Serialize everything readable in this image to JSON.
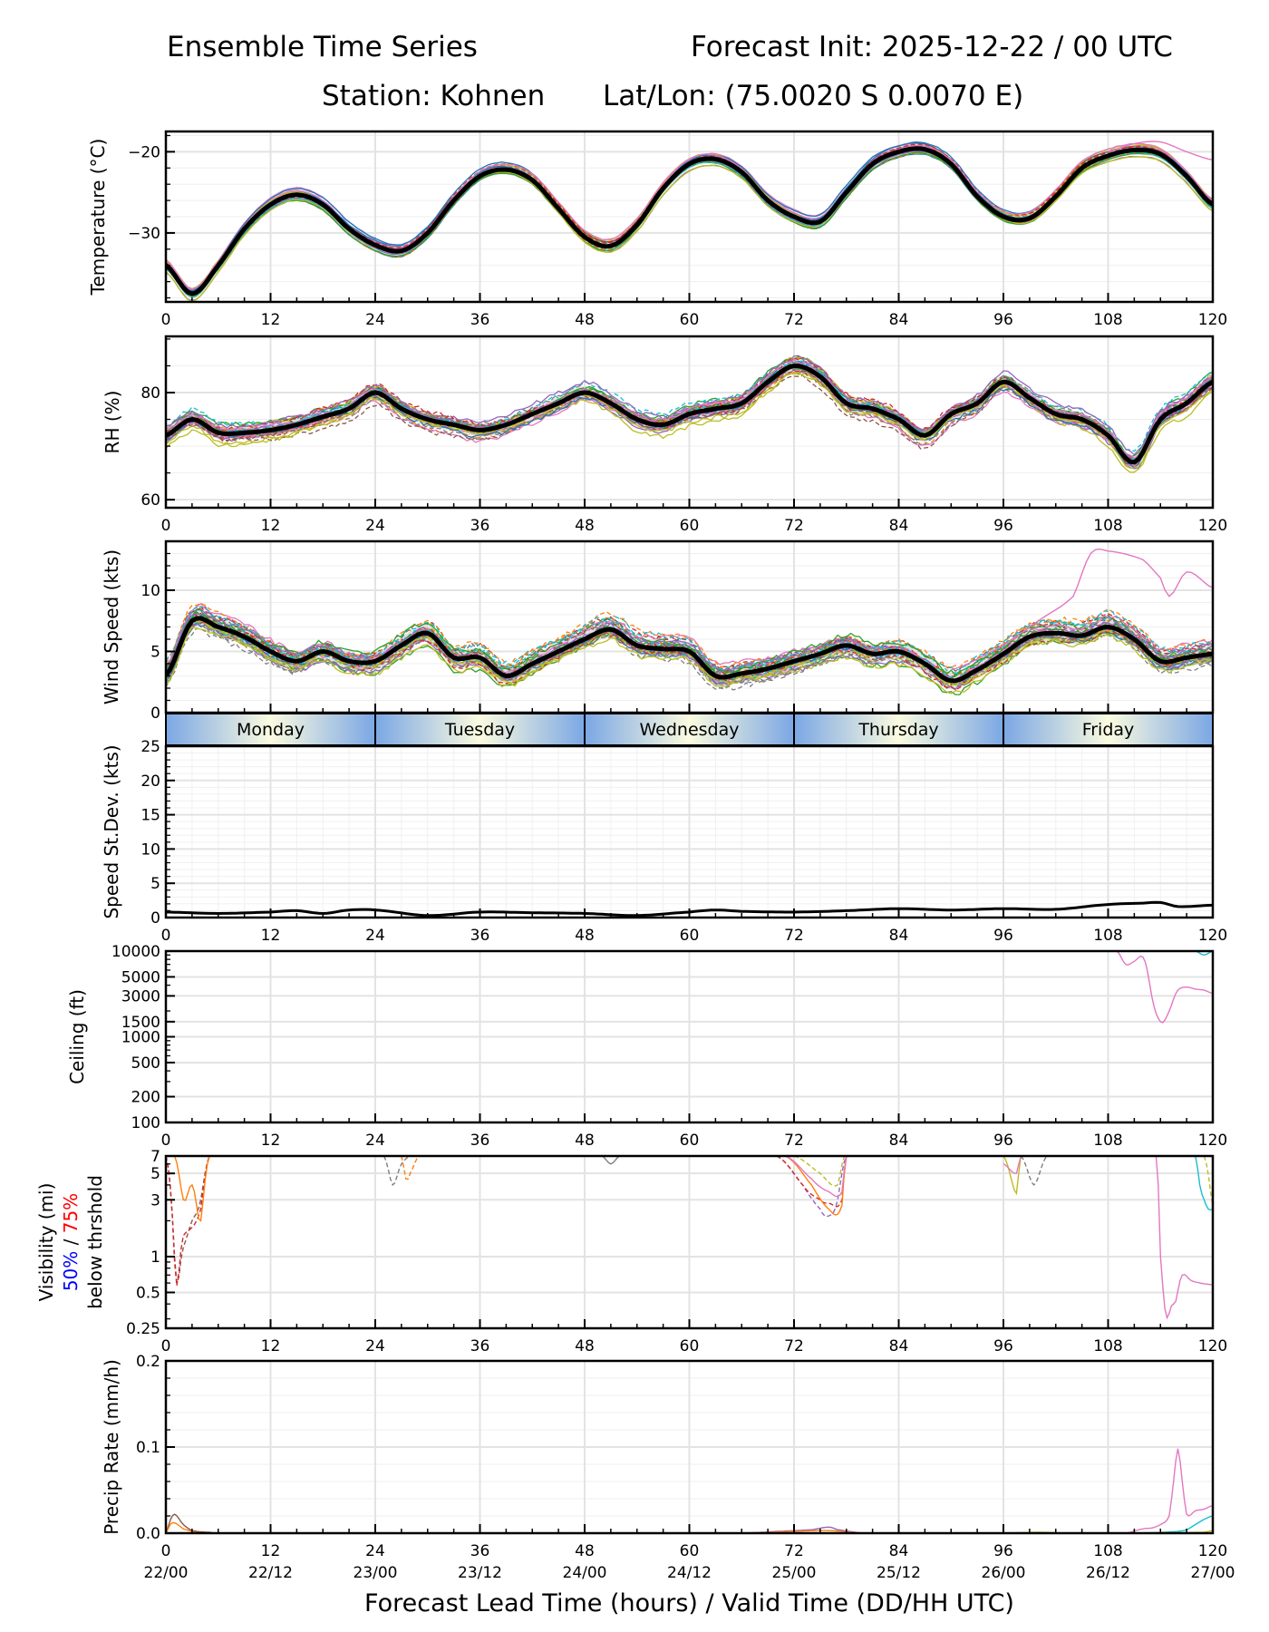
{
  "header": {
    "left_title": "Ensemble Time Series",
    "right_title": "Forecast Init: 2025-12-22 / 00 UTC",
    "station": "Station: Kohnen",
    "latlon": "Lat/Lon: (75.0020 S 0.0070 E)"
  },
  "xaxis": {
    "label": "Forecast Lead Time (hours) / Valid Time (DD/HH UTC)",
    "range": [
      0,
      120
    ],
    "ticks": [
      0,
      12,
      24,
      36,
      48,
      60,
      72,
      84,
      96,
      108,
      120
    ],
    "tick_labels": [
      "0",
      "12",
      "24",
      "36",
      "48",
      "60",
      "72",
      "84",
      "96",
      "108",
      "120"
    ],
    "valid_labels": [
      "22/00",
      "22/12",
      "23/00",
      "23/12",
      "24/00",
      "24/12",
      "25/00",
      "25/12",
      "26/00",
      "26/12",
      "27/00"
    ]
  },
  "day_band": {
    "days": [
      "Monday",
      "Tuesday",
      "Wednesday",
      "Thursday",
      "Friday"
    ],
    "edge_color": "#7ba7e4",
    "center_color": "#fbfbe0"
  },
  "colors": {
    "mean": "#000000",
    "spread": "#d9d9d9",
    "members": [
      "#1f77b4",
      "#ff7f0e",
      "#2ca02c",
      "#d62728",
      "#9467bd",
      "#8c564b",
      "#e377c2",
      "#7f7f7f",
      "#bcbd22",
      "#17becf"
    ],
    "label_50": "#0000ff",
    "label_75": "#ff0000"
  },
  "chart_data": [
    {
      "type": "line",
      "id": "temperature",
      "ylabel": "Temperature (°C)",
      "ylim": [
        -38.5,
        -17.5
      ],
      "yscale": "linear",
      "yticks": [
        -20,
        -30
      ],
      "ytick_labels": [
        "−20",
        "−30"
      ],
      "minor_step": 2,
      "x": [
        0,
        3,
        6,
        9,
        12,
        15,
        18,
        21,
        24,
        27,
        30,
        33,
        36,
        39,
        42,
        45,
        48,
        51,
        54,
        57,
        60,
        63,
        66,
        69,
        72,
        75,
        78,
        81,
        84,
        87,
        90,
        93,
        96,
        99,
        102,
        105,
        108,
        111,
        114,
        117,
        120
      ],
      "mean": [
        -34,
        -37.5,
        -34,
        -29.5,
        -26.5,
        -25.3,
        -26.5,
        -29.5,
        -31.5,
        -32.2,
        -30,
        -26,
        -23,
        -22.2,
        -23.5,
        -27,
        -30.5,
        -31.6,
        -29,
        -24.5,
        -21.5,
        -20.9,
        -22.5,
        -26,
        -28,
        -28.6,
        -25,
        -21.5,
        -20,
        -19.7,
        -21.5,
        -25.5,
        -28,
        -28.2,
        -25.5,
        -22,
        -20.5,
        -19.8,
        -20.3,
        -23,
        -26.5
      ],
      "spread": 0.6,
      "member_jitter": 0.9,
      "outlier": {
        "color_index": 6,
        "x": [
          108,
          111,
          114,
          117,
          120
        ],
        "y": [
          -20,
          -19,
          -18.8,
          -20,
          -21
        ]
      }
    },
    {
      "type": "line",
      "id": "rh",
      "ylabel": "RH (%)",
      "ylim": [
        58.5,
        90.5
      ],
      "yscale": "linear",
      "yticks": [
        60,
        80
      ],
      "ytick_labels": [
        "60",
        "80"
      ],
      "minor_step": 5,
      "x": [
        0,
        3,
        6,
        9,
        12,
        15,
        18,
        21,
        24,
        27,
        30,
        33,
        36,
        39,
        42,
        45,
        48,
        51,
        54,
        57,
        60,
        63,
        66,
        69,
        72,
        75,
        78,
        81,
        84,
        87,
        90,
        93,
        96,
        99,
        102,
        105,
        108,
        111,
        114,
        117,
        120
      ],
      "mean": [
        72,
        75,
        72.5,
        72.5,
        73,
        74,
        75.5,
        77,
        80,
        77,
        75,
        74,
        73,
        74,
        76,
        78,
        80,
        78,
        75,
        74,
        76,
        77,
        78,
        82,
        85,
        83,
        78,
        77,
        75,
        72,
        76,
        78,
        82,
        79,
        76,
        75,
        72,
        67,
        75,
        78,
        82
      ],
      "spread": 1.2,
      "member_jitter": 2.4,
      "outlier": null
    },
    {
      "type": "line",
      "id": "wind",
      "ylabel": "Wind Speed (kts)",
      "ylim": [
        0,
        14
      ],
      "yscale": "linear",
      "yticks": [
        0,
        5,
        10
      ],
      "ytick_labels": [
        "0",
        "5",
        "10"
      ],
      "minor_step": 1,
      "x": [
        0,
        3,
        6,
        9,
        12,
        15,
        18,
        21,
        24,
        27,
        30,
        33,
        36,
        39,
        42,
        45,
        48,
        51,
        54,
        57,
        60,
        63,
        66,
        69,
        72,
        75,
        78,
        81,
        84,
        87,
        90,
        93,
        96,
        99,
        102,
        105,
        108,
        111,
        114,
        117,
        120
      ],
      "mean": [
        3,
        7.5,
        7,
        6.2,
        5,
        4.2,
        5,
        4.2,
        4.2,
        5.5,
        6.5,
        4.5,
        4.5,
        3,
        4,
        5,
        6,
        6.8,
        5.5,
        5.2,
        5,
        3,
        3.2,
        3.6,
        4.2,
        4.8,
        5.5,
        4.8,
        5,
        4,
        2.6,
        3.5,
        4.8,
        6.2,
        6.5,
        6.3,
        7,
        6,
        4.2,
        4.5,
        4.8
      ],
      "spread": 0.7,
      "member_jitter": 1.3,
      "outlier": {
        "color_index": 6,
        "x": [
          90,
          96,
          100,
          104,
          106,
          108,
          112,
          114,
          115,
          117,
          120
        ],
        "y": [
          3.5,
          5.5,
          7.5,
          9.5,
          13,
          13.2,
          12.5,
          11,
          9.5,
          11.5,
          10.2
        ]
      }
    },
    {
      "type": "line",
      "id": "speed_stdev",
      "ylabel": "Speed St.Dev. (kts)",
      "ylim": [
        0,
        25
      ],
      "yscale": "linear",
      "yticks": [
        0,
        5,
        10,
        15,
        20,
        25
      ],
      "ytick_labels": [
        "0",
        "5",
        "10",
        "15",
        "20",
        "25"
      ],
      "minor_step": 1,
      "x": [
        0,
        6,
        12,
        15,
        18,
        21,
        24,
        30,
        36,
        42,
        48,
        54,
        60,
        63,
        66,
        72,
        78,
        84,
        90,
        96,
        102,
        108,
        112,
        114,
        116,
        120
      ],
      "mean": [
        0.8,
        0.6,
        0.8,
        1.0,
        0.6,
        1.1,
        1.1,
        0.3,
        0.8,
        0.7,
        0.6,
        0.3,
        0.8,
        1.1,
        0.9,
        0.8,
        1.0,
        1.3,
        1.1,
        1.3,
        1.2,
        1.9,
        2.1,
        2.2,
        1.6,
        1.8
      ],
      "spread": 0,
      "member_jitter": 0,
      "outlier": null
    },
    {
      "type": "line",
      "id": "ceiling",
      "ylabel": "Ceiling (ft)",
      "ylim": [
        100,
        10000
      ],
      "yscale": "log",
      "yticks": [
        100,
        200,
        500,
        1000,
        1500,
        3000,
        5000,
        10000
      ],
      "ytick_labels": [
        "100",
        "200",
        "500",
        "1000",
        "1500",
        "3000",
        "5000",
        "10000"
      ],
      "visible_members": [
        {
          "color_index": 6,
          "x": [
            109,
            110,
            111,
            112,
            113,
            114,
            115,
            116,
            117,
            118,
            119,
            120
          ],
          "y": [
            10000,
            7000,
            7600,
            8500,
            3000,
            1500,
            2000,
            3500,
            3800,
            3600,
            3500,
            3200
          ]
        },
        {
          "color_index": 9,
          "x": [
            118,
            119,
            120
          ],
          "y": [
            10000,
            9000,
            10000
          ]
        }
      ]
    },
    {
      "type": "line",
      "id": "visibility",
      "ylabel": "Visibility (mi)",
      "ylabel_line2_a": "50%",
      "ylabel_line2_sep": " / ",
      "ylabel_line2_b": "75%",
      "ylabel_line3": "below thrshold",
      "ylim": [
        0.25,
        7
      ],
      "yscale": "log",
      "yticks": [
        0.25,
        0.5,
        1,
        3,
        5,
        7
      ],
      "ytick_labels": [
        "0.25",
        "0.5",
        "1",
        "3",
        "5",
        "7"
      ],
      "visible_members": [
        {
          "color_index": 5,
          "x": [
            0,
            1,
            2,
            3,
            4,
            5
          ],
          "y": [
            7,
            1,
            1.2,
            2,
            3,
            7
          ]
        },
        {
          "color_index": 3,
          "x": [
            0,
            1,
            2,
            4,
            5
          ],
          "y": [
            7,
            0.9,
            1.5,
            2.5,
            7
          ]
        },
        {
          "color_index": 1,
          "x": [
            1,
            2,
            3,
            4,
            5
          ],
          "y": [
            7,
            3,
            4,
            2,
            7
          ]
        },
        {
          "color_index": 7,
          "x": [
            25,
            26,
            27,
            28
          ],
          "y": [
            7,
            4,
            6,
            7
          ]
        },
        {
          "color_index": 1,
          "x": [
            27,
            27.5,
            28,
            29
          ],
          "y": [
            7,
            4.5,
            5,
            7
          ]
        },
        {
          "color_index": 7,
          "x": [
            50,
            51,
            52
          ],
          "y": [
            7,
            6,
            7
          ]
        },
        {
          "color_index": 4,
          "x": [
            70,
            73,
            75,
            76,
            77,
            78
          ],
          "y": [
            7,
            4,
            2.5,
            2.2,
            3,
            7
          ]
        },
        {
          "color_index": 3,
          "x": [
            70,
            73,
            75,
            76,
            77.5,
            78
          ],
          "y": [
            7,
            4,
            3,
            2.8,
            3,
            7
          ]
        },
        {
          "color_index": 1,
          "x": [
            71,
            74,
            76,
            77.5,
            78
          ],
          "y": [
            7,
            4,
            2.5,
            2.7,
            7
          ]
        },
        {
          "color_index": 6,
          "x": [
            71,
            74,
            76,
            77.5,
            78
          ],
          "y": [
            7,
            4.5,
            3.5,
            3.5,
            7
          ]
        },
        {
          "color_index": 8,
          "x": [
            72,
            75,
            77,
            77.8
          ],
          "y": [
            7,
            5,
            4,
            7
          ]
        },
        {
          "color_index": 8,
          "x": [
            96,
            97.5,
            98
          ],
          "y": [
            7,
            3.4,
            7
          ]
        },
        {
          "color_index": 6,
          "x": [
            96,
            97.5,
            98
          ],
          "y": [
            6,
            5,
            7
          ]
        },
        {
          "color_index": 7,
          "x": [
            98,
            99.5,
            101
          ],
          "y": [
            7,
            4,
            7
          ]
        },
        {
          "color_index": 6,
          "x": [
            113.5,
            114,
            115.5,
            116.5,
            117.5,
            118.5,
            120
          ],
          "y": [
            7,
            1,
            0.4,
            0.7,
            0.63,
            0.6,
            0.58
          ]
        },
        {
          "color_index": 9,
          "x": [
            118,
            118.5,
            119,
            119.5,
            120
          ],
          "y": [
            7,
            4,
            3,
            2.5,
            2.5
          ]
        },
        {
          "color_index": 8,
          "x": [
            119,
            120
          ],
          "y": [
            7,
            2.6
          ]
        }
      ]
    },
    {
      "type": "line",
      "id": "precip",
      "ylabel": "Precip Rate (mm/h)",
      "ylim": [
        0,
        0.2
      ],
      "yscale": "linear",
      "yticks": [
        0,
        0.1,
        0.2
      ],
      "ytick_labels": [
        "0.0",
        "0.1",
        "0.2"
      ],
      "minor_step": 0.02,
      "visible_members": [
        {
          "color_index": 5,
          "x": [
            0,
            0.5,
            1,
            2,
            3,
            5,
            6
          ],
          "y": [
            0,
            0.015,
            0.022,
            0.01,
            0.003,
            0.001,
            0
          ]
        },
        {
          "color_index": 1,
          "x": [
            0,
            0.5,
            1,
            2,
            4
          ],
          "y": [
            0,
            0.01,
            0.012,
            0.005,
            0
          ]
        },
        {
          "color_index": 4,
          "x": [
            66,
            70,
            74,
            76,
            77,
            80
          ],
          "y": [
            0,
            0.002,
            0.004,
            0.007,
            0.004,
            0
          ]
        },
        {
          "color_index": 1,
          "x": [
            66,
            72,
            76,
            80
          ],
          "y": [
            0,
            0.002,
            0.003,
            0
          ]
        },
        {
          "color_index": 6,
          "x": [
            110,
            112,
            113,
            114,
            115,
            115.5,
            116,
            116.5,
            117,
            118,
            119,
            120
          ],
          "y": [
            0,
            0.005,
            0.006,
            0.01,
            0.02,
            0.06,
            0.098,
            0.06,
            0.022,
            0.026,
            0.028,
            0.032
          ]
        },
        {
          "color_index": 9,
          "x": [
            112,
            116,
            117,
            118,
            119,
            120
          ],
          "y": [
            0,
            0.002,
            0.004,
            0.01,
            0.016,
            0.02
          ]
        },
        {
          "color_index": 8,
          "x": [
            96,
            100,
            104,
            119,
            120
          ],
          "y": [
            0,
            0.001,
            0.0,
            0.001,
            0.003
          ]
        }
      ]
    }
  ]
}
